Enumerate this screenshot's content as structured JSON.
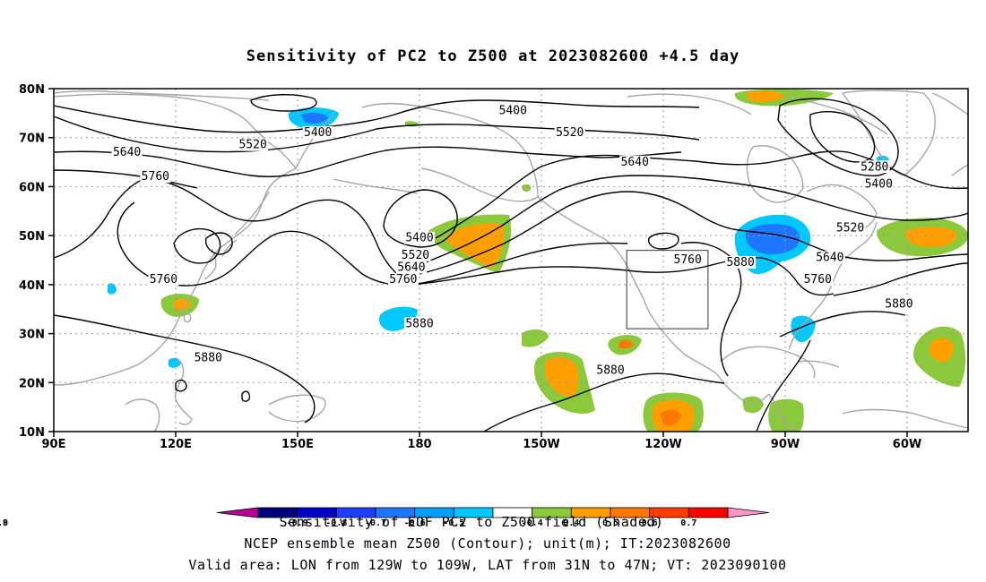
{
  "title": "Sensitivity of PC2 to Z500 at 2023082600 +4.5 day",
  "map": {
    "lon_ticks": [
      "90E",
      "120E",
      "150E",
      "180",
      "150W",
      "120W",
      "90W",
      "60W"
    ],
    "lat_ticks": [
      "80N",
      "70N",
      "60N",
      "50N",
      "40N",
      "30N",
      "20N",
      "10N"
    ],
    "contour_labels": [
      {
        "text": "5400",
        "lon": 155,
        "lat": 70.5
      },
      {
        "text": "5520",
        "lon": 139,
        "lat": 68
      },
      {
        "text": "5640",
        "lon": 108,
        "lat": 66.5
      },
      {
        "text": "5760",
        "lon": 115,
        "lat": 61.5
      },
      {
        "text": "5400",
        "lon": -157,
        "lat": 75
      },
      {
        "text": "5520",
        "lon": -143,
        "lat": 70.5
      },
      {
        "text": "5640",
        "lon": -127,
        "lat": 64.5
      },
      {
        "text": "5280",
        "lon": -68,
        "lat": 63.5
      },
      {
        "text": "5400",
        "lon": -67,
        "lat": 60
      },
      {
        "text": "5520",
        "lon": -74,
        "lat": 51
      },
      {
        "text": "5400",
        "lon": 180,
        "lat": 49
      },
      {
        "text": "5520",
        "lon": 179,
        "lat": 45.5
      },
      {
        "text": "5640",
        "lon": 178,
        "lat": 43
      },
      {
        "text": "5760",
        "lon": 176,
        "lat": 40.5
      },
      {
        "text": "5760",
        "lon": 117,
        "lat": 40.5
      },
      {
        "text": "5880",
        "lon": -180,
        "lat": 31.5
      },
      {
        "text": "5880",
        "lon": 128,
        "lat": 24.5
      },
      {
        "text": "5880",
        "lon": -133,
        "lat": 22
      },
      {
        "text": "5760",
        "lon": -114,
        "lat": 44.5
      },
      {
        "text": "5880",
        "lon": -101,
        "lat": 44
      },
      {
        "text": "5640",
        "lon": -79,
        "lat": 45
      },
      {
        "text": "5760",
        "lon": -82,
        "lat": 40.5
      },
      {
        "text": "5880",
        "lon": -62,
        "lat": 35.5
      }
    ],
    "valid_box": {
      "lon_min": -129,
      "lon_max": -109,
      "lat_min": 31,
      "lat_max": 47
    }
  },
  "colorbar": {
    "labels": [
      "-0.9",
      "-0.8",
      "-0.7",
      "-0.6",
      "-0.5",
      "-0.4",
      "0.4",
      "0.5",
      "0.6",
      "0.7",
      "0.8",
      "0.9"
    ],
    "colors": [
      "#bb0099",
      "#00007a",
      "#0000c8",
      "#1e3cff",
      "#1e78ff",
      "#00a0ff",
      "#00c8ff",
      "#ffffff",
      "#8cc83c",
      "#ffa000",
      "#ff7800",
      "#ff3c00",
      "#ff0000",
      "#ff96c8"
    ]
  },
  "caption": {
    "line1": "Sensitivity of EOF PC2 to Z500 field (Shaded)",
    "line2": "NCEP ensemble mean Z500 (Contour); unit(m); IT:2023082600",
    "line3": "Valid area: LON from 129W to 109W, LAT from 31N to 47N; VT: 2023090100"
  }
}
